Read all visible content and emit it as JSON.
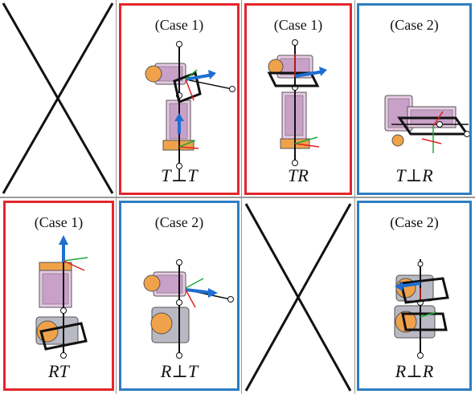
{
  "cells": [
    {
      "id": "r1c1",
      "type": "empty"
    },
    {
      "id": "r1c2",
      "type": "case",
      "frame_color": "#e3262c",
      "case_label": "(Case 1)",
      "math_label": "T⊥T",
      "pose": "upright-tilted"
    },
    {
      "id": "r1c3",
      "type": "case",
      "frame_color": "#e3262c",
      "case_label": "(Case 1)",
      "math_label": "TR",
      "pose": "upright"
    },
    {
      "id": "r1c4",
      "type": "case",
      "frame_color": "#2e7dc2",
      "case_label": "(Case 2)",
      "math_label": "T⊥R",
      "pose": "horizontal"
    },
    {
      "id": "r2c1",
      "type": "case",
      "frame_color": "#e3262c",
      "case_label": "(Case 1)",
      "math_label": "RT",
      "pose": "upright-inverted"
    },
    {
      "id": "r2c2",
      "type": "case",
      "frame_color": "#2e7dc2",
      "case_label": "(Case 2)",
      "math_label": "R⊥T",
      "pose": "upright-tilted"
    },
    {
      "id": "r2c3",
      "type": "empty"
    },
    {
      "id": "r2c4",
      "type": "case",
      "frame_color": "#2e7dc2",
      "case_label": "(Case 2)",
      "math_label": "R⊥R",
      "pose": "stacked"
    }
  ],
  "colors": {
    "red_frame": "#e3262c",
    "blue_frame": "#2e7dc2",
    "axis_red": "#e02020",
    "axis_green": "#1fa83a",
    "axis_blue": "#1f6fd1",
    "module_pink": "#e7c9e3",
    "module_orange": "#f0a24a",
    "module_gray": "#b9b9c4"
  }
}
